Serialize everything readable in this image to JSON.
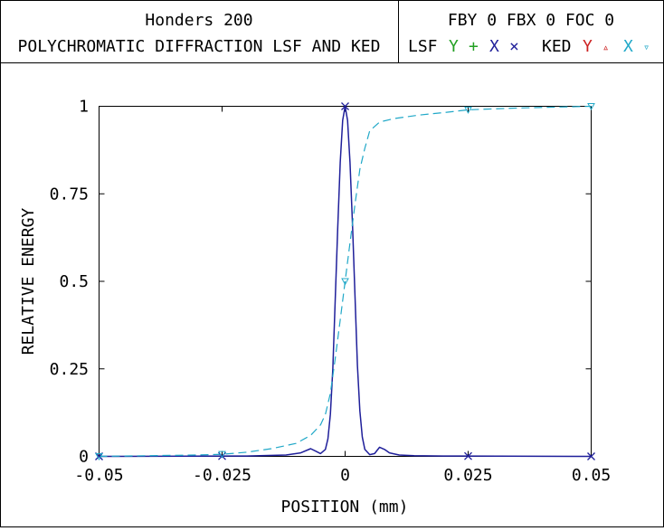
{
  "header": {
    "title_line1": "Honders 200",
    "title_line2": "POLYCHROMATIC DIFFRACTION LSF AND KED",
    "params": "FBY 0 FBX 0 FOC 0",
    "legend": {
      "lsf_label": "LSF",
      "lsf_y": "Y",
      "lsf_y_marker": "+",
      "lsf_x": "X",
      "lsf_x_marker": "×",
      "ked_label": "KED",
      "ked_y": "Y",
      "ked_y_marker": "▵",
      "ked_x": "X",
      "ked_x_marker": "▿"
    }
  },
  "colors": {
    "lsf_y": "#22a022",
    "lsf_x": "#1f1f9a",
    "ked_y": "#cc2020",
    "ked_x": "#20a8c8",
    "frame": "#000000"
  },
  "chart_data": {
    "type": "line",
    "xlabel": "POSITION (mm)",
    "ylabel": "RELATIVE ENERGY",
    "xlim": [
      -0.05,
      0.05
    ],
    "ylim": [
      0,
      1
    ],
    "xticks": [
      -0.05,
      -0.025,
      0,
      0.025,
      0.05
    ],
    "xtick_labels": [
      "-0.05",
      "-0.025",
      "0",
      "0.025",
      "0.05"
    ],
    "yticks": [
      0,
      0.25,
      0.5,
      0.75,
      1
    ],
    "ytick_labels": [
      "0",
      "0.25",
      "0.5",
      "0.75",
      "1"
    ],
    "grid": false,
    "series": [
      {
        "name": "LSF X",
        "style": "solid",
        "color": "#1f1f9a",
        "markers_at": [
          -0.05,
          -0.025,
          0,
          0.025,
          0.05
        ],
        "x": [
          -0.05,
          -0.02,
          -0.012,
          -0.009,
          -0.007,
          -0.006,
          -0.005,
          -0.004,
          -0.0035,
          -0.003,
          -0.0025,
          -0.002,
          -0.0015,
          -0.001,
          -0.0005,
          0,
          0.0005,
          0.001,
          0.0015,
          0.002,
          0.0025,
          0.003,
          0.0035,
          0.004,
          0.005,
          0.006,
          0.007,
          0.008,
          0.009,
          0.011,
          0.014,
          0.02,
          0.05
        ],
        "y": [
          0,
          0.001,
          0.004,
          0.01,
          0.022,
          0.015,
          0.008,
          0.02,
          0.05,
          0.12,
          0.25,
          0.45,
          0.65,
          0.84,
          0.96,
          1.0,
          0.96,
          0.84,
          0.66,
          0.46,
          0.26,
          0.13,
          0.055,
          0.02,
          0.005,
          0.008,
          0.026,
          0.02,
          0.01,
          0.004,
          0.002,
          0.001,
          0
        ]
      },
      {
        "name": "KED X",
        "style": "dashed",
        "color": "#20a8c8",
        "markers_at": [
          -0.05,
          -0.025,
          0,
          0.025,
          0.05
        ],
        "x": [
          -0.05,
          -0.03,
          -0.025,
          -0.02,
          -0.015,
          -0.01,
          -0.007,
          -0.005,
          -0.004,
          -0.003,
          -0.002,
          -0.001,
          0,
          0.001,
          0.002,
          0.003,
          0.004,
          0.005,
          0.007,
          0.01,
          0.015,
          0.02,
          0.025,
          0.035,
          0.05
        ],
        "y": [
          0,
          0.004,
          0.006,
          0.012,
          0.022,
          0.037,
          0.06,
          0.09,
          0.12,
          0.18,
          0.28,
          0.39,
          0.5,
          0.61,
          0.72,
          0.82,
          0.88,
          0.93,
          0.955,
          0.965,
          0.975,
          0.982,
          0.99,
          0.995,
          1.0
        ]
      }
    ]
  }
}
